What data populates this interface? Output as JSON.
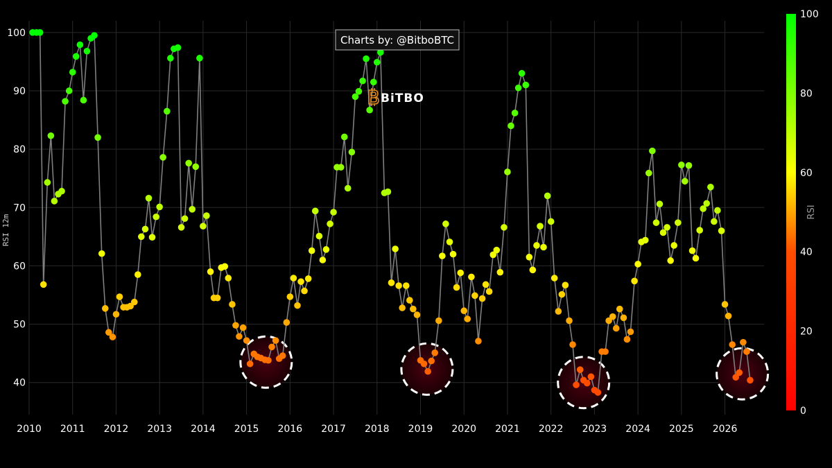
{
  "credit": "Charts by: @BitboBTC",
  "logo": {
    "text": "BiTBO",
    "icon": "bitcoin-b-icon"
  },
  "colors": {
    "background": "#000000",
    "grid": "#2a2a2a",
    "line": "#7f7f7f",
    "highlight_ring": "#ffffff",
    "highlight_fill": "#3a0008"
  },
  "chart_data": {
    "type": "scatter",
    "mode": "lines+markers",
    "ylabel": "RSI 12m",
    "xlabel": "",
    "xlim": [
      2010.0,
      2026.9
    ],
    "ylim": [
      34.5,
      102
    ],
    "xticks": [
      "2010",
      "2011",
      "2012",
      "2013",
      "2014",
      "2015",
      "2016",
      "2017",
      "2018",
      "2019",
      "2020",
      "2021",
      "2022",
      "2023",
      "2024",
      "2025",
      "2026"
    ],
    "yticks": [
      40,
      50,
      60,
      70,
      80,
      90,
      100
    ],
    "grid": true,
    "colorbar": {
      "title": "RSI",
      "range": [
        0,
        100
      ],
      "ticks": [
        0,
        20,
        40,
        60,
        80,
        100
      ],
      "colorscale": [
        "#ff0000",
        "#ffff00",
        "#00ff00"
      ]
    },
    "highlights": [
      {
        "x": 2015.45,
        "y": 43.5
      },
      {
        "x": 2019.15,
        "y": 42.3
      },
      {
        "x": 2022.75,
        "y": 40.0
      },
      {
        "x": 2026.4,
        "y": 41.5
      }
    ],
    "series": [
      {
        "points": [
          [
            2010.08,
            100
          ],
          [
            2010.17,
            100
          ],
          [
            2010.25,
            100
          ],
          [
            2010.33,
            56.8
          ],
          [
            2010.42,
            74.3
          ],
          [
            2010.5,
            82.3
          ],
          [
            2010.58,
            71.1
          ],
          [
            2010.67,
            72.3
          ],
          [
            2010.75,
            72.8
          ],
          [
            2010.83,
            88.2
          ],
          [
            2010.92,
            90
          ],
          [
            2011.0,
            93.2
          ],
          [
            2011.08,
            95.9
          ],
          [
            2011.17,
            97.9
          ],
          [
            2011.25,
            88.4
          ],
          [
            2011.33,
            96.8
          ],
          [
            2011.42,
            99
          ],
          [
            2011.5,
            99.5
          ],
          [
            2011.58,
            82
          ],
          [
            2011.67,
            62.1
          ],
          [
            2011.75,
            52.7
          ],
          [
            2011.83,
            48.6
          ],
          [
            2011.92,
            47.8
          ],
          [
            2012.0,
            51.7
          ],
          [
            2012.08,
            54.7
          ],
          [
            2012.17,
            52.9
          ],
          [
            2012.25,
            52.9
          ],
          [
            2012.33,
            53.1
          ],
          [
            2012.42,
            53.8
          ],
          [
            2012.5,
            58.5
          ],
          [
            2012.58,
            65
          ],
          [
            2012.67,
            66.3
          ],
          [
            2012.75,
            71.6
          ],
          [
            2012.83,
            64.9
          ],
          [
            2012.92,
            68.4
          ],
          [
            2013.0,
            70.1
          ],
          [
            2013.08,
            78.6
          ],
          [
            2013.17,
            86.5
          ],
          [
            2013.25,
            95.6
          ],
          [
            2013.33,
            97.2
          ],
          [
            2013.42,
            97.4
          ],
          [
            2013.5,
            66.6
          ],
          [
            2013.58,
            68.1
          ],
          [
            2013.67,
            77.6
          ],
          [
            2013.75,
            69.7
          ],
          [
            2013.83,
            77
          ],
          [
            2013.92,
            95.6
          ],
          [
            2014.0,
            66.8
          ],
          [
            2014.08,
            68.6
          ],
          [
            2014.17,
            59
          ],
          [
            2014.25,
            54.5
          ],
          [
            2014.33,
            54.5
          ],
          [
            2014.42,
            59.7
          ],
          [
            2014.5,
            59.9
          ],
          [
            2014.58,
            57.9
          ],
          [
            2014.67,
            53.4
          ],
          [
            2014.75,
            49.8
          ],
          [
            2014.83,
            47.9
          ],
          [
            2014.92,
            49.4
          ],
          [
            2015.0,
            47.2
          ],
          [
            2015.08,
            43.2
          ],
          [
            2015.17,
            44.9
          ],
          [
            2015.25,
            44.4
          ],
          [
            2015.33,
            44.2
          ],
          [
            2015.42,
            43.9
          ],
          [
            2015.5,
            43.8
          ],
          [
            2015.58,
            46.1
          ],
          [
            2015.67,
            47.2
          ],
          [
            2015.75,
            44.1
          ],
          [
            2015.83,
            44.6
          ],
          [
            2015.92,
            50.3
          ],
          [
            2016.0,
            54.7
          ],
          [
            2016.08,
            57.9
          ],
          [
            2016.17,
            53.2
          ],
          [
            2016.25,
            57.3
          ],
          [
            2016.33,
            55.7
          ],
          [
            2016.42,
            57.8
          ],
          [
            2016.5,
            62.6
          ],
          [
            2016.58,
            69.4
          ],
          [
            2016.67,
            65.1
          ],
          [
            2016.75,
            61
          ],
          [
            2016.83,
            62.8
          ],
          [
            2016.92,
            67.2
          ],
          [
            2017.0,
            69.2
          ],
          [
            2017.08,
            76.9
          ],
          [
            2017.17,
            76.9
          ],
          [
            2017.25,
            82.1
          ],
          [
            2017.33,
            73.3
          ],
          [
            2017.42,
            79.5
          ],
          [
            2017.5,
            89
          ],
          [
            2017.58,
            89.9
          ],
          [
            2017.67,
            91.7
          ],
          [
            2017.75,
            95.5
          ],
          [
            2017.83,
            86.7
          ],
          [
            2017.92,
            91.5
          ],
          [
            2018.0,
            94.9
          ],
          [
            2018.08,
            96.6
          ],
          [
            2018.17,
            72.5
          ],
          [
            2018.25,
            72.7
          ],
          [
            2018.33,
            57.1
          ],
          [
            2018.42,
            62.9
          ],
          [
            2018.5,
            56.6
          ],
          [
            2018.58,
            52.8
          ],
          [
            2018.67,
            56.6
          ],
          [
            2018.75,
            54.1
          ],
          [
            2018.83,
            52.6
          ],
          [
            2018.92,
            51.6
          ],
          [
            2019.0,
            43.8
          ],
          [
            2019.08,
            43.2
          ],
          [
            2019.17,
            41.9
          ],
          [
            2019.25,
            43.7
          ],
          [
            2019.33,
            45.1
          ],
          [
            2019.42,
            50.6
          ],
          [
            2019.5,
            61.7
          ],
          [
            2019.58,
            67.2
          ],
          [
            2019.67,
            64.1
          ],
          [
            2019.75,
            62
          ],
          [
            2019.83,
            56.3
          ],
          [
            2019.92,
            58.8
          ],
          [
            2020.0,
            52.3
          ],
          [
            2020.08,
            50.9
          ],
          [
            2020.17,
            58.1
          ],
          [
            2020.25,
            54.9
          ],
          [
            2020.33,
            47.1
          ],
          [
            2020.42,
            54.4
          ],
          [
            2020.5,
            56.8
          ],
          [
            2020.58,
            55.6
          ],
          [
            2020.67,
            61.9
          ],
          [
            2020.75,
            62.7
          ],
          [
            2020.83,
            58.9
          ],
          [
            2020.92,
            66.6
          ],
          [
            2021.0,
            76.1
          ],
          [
            2021.08,
            84
          ],
          [
            2021.17,
            86.2
          ],
          [
            2021.25,
            90.5
          ],
          [
            2021.33,
            93
          ],
          [
            2021.42,
            91
          ],
          [
            2021.5,
            61.5
          ],
          [
            2021.58,
            59.3
          ],
          [
            2021.67,
            63.5
          ],
          [
            2021.75,
            66.8
          ],
          [
            2021.83,
            63.2
          ],
          [
            2021.92,
            72
          ],
          [
            2022.0,
            67.6
          ],
          [
            2022.08,
            57.9
          ],
          [
            2022.17,
            52.2
          ],
          [
            2022.25,
            55.1
          ],
          [
            2022.33,
            56.7
          ],
          [
            2022.42,
            50.6
          ],
          [
            2022.5,
            46.5
          ],
          [
            2022.58,
            39.6
          ],
          [
            2022.67,
            42.2
          ],
          [
            2022.75,
            40.4
          ],
          [
            2022.83,
            39.9
          ],
          [
            2022.92,
            41
          ],
          [
            2023.0,
            38.7
          ],
          [
            2023.08,
            38.3
          ],
          [
            2023.17,
            45.3
          ],
          [
            2023.25,
            45.3
          ],
          [
            2023.33,
            50.6
          ],
          [
            2023.42,
            51.3
          ],
          [
            2023.5,
            49.3
          ],
          [
            2023.58,
            52.6
          ],
          [
            2023.67,
            51.1
          ],
          [
            2023.75,
            47.4
          ],
          [
            2023.83,
            48.7
          ],
          [
            2023.92,
            57.4
          ],
          [
            2024.0,
            60.3
          ],
          [
            2024.08,
            64.1
          ],
          [
            2024.17,
            64.4
          ],
          [
            2024.25,
            75.9
          ],
          [
            2024.33,
            79.7
          ],
          [
            2024.42,
            67.4
          ],
          [
            2024.5,
            70.6
          ],
          [
            2024.58,
            65.7
          ],
          [
            2024.67,
            66.6
          ],
          [
            2024.75,
            60.9
          ],
          [
            2024.83,
            63.5
          ],
          [
            2024.92,
            67.4
          ],
          [
            2025.0,
            77.3
          ],
          [
            2025.08,
            74.5
          ],
          [
            2025.17,
            77.2
          ],
          [
            2025.25,
            62.6
          ],
          [
            2025.33,
            61.3
          ],
          [
            2025.42,
            66.1
          ],
          [
            2025.5,
            69.8
          ],
          [
            2025.58,
            70.7
          ],
          [
            2025.67,
            73.5
          ],
          [
            2025.75,
            67.6
          ],
          [
            2025.83,
            69.5
          ],
          [
            2025.92,
            66
          ],
          [
            2026.0,
            53.4
          ],
          [
            2026.08,
            51.4
          ],
          [
            2026.17,
            46.5
          ],
          [
            2026.25,
            40.9
          ],
          [
            2026.33,
            41.7
          ],
          [
            2026.42,
            46.9
          ],
          [
            2026.5,
            45.3
          ],
          [
            2026.58,
            40.4
          ]
        ]
      }
    ]
  }
}
